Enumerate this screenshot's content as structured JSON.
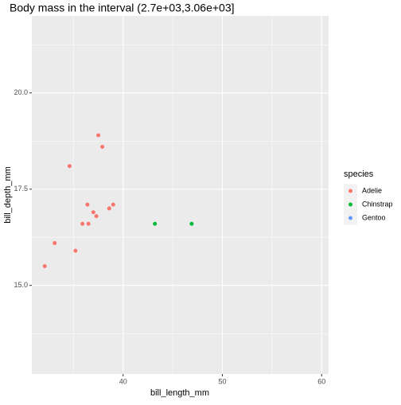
{
  "chart_data": {
    "type": "scatter",
    "title": "Body mass in the interval (2.7e+03,3.06e+03]",
    "x_label": "bill_length_mm",
    "y_label": "bill_depth_mm",
    "legend_title": "species",
    "legend_position": "right",
    "xlim": [
      30.8,
      60.7
    ],
    "ylim": [
      12.7,
      22.0
    ],
    "xticks": [
      40,
      50,
      60
    ],
    "yticks": [
      {
        "value": 15,
        "label": "15.0"
      },
      {
        "value": 17.5,
        "label": "17.5"
      },
      {
        "value": 20,
        "label": "20.0"
      }
    ],
    "grid": true,
    "series": [
      {
        "name": "Adelie",
        "color": "#F8766D",
        "x": [
          32.1,
          33.1,
          34.6,
          35.2,
          35.9,
          36.4,
          36.5,
          37.0,
          37.3,
          37.5,
          37.9,
          38.6,
          39.0
        ],
        "values": [
          15.5,
          16.1,
          18.1,
          15.9,
          16.6,
          17.1,
          16.6,
          16.9,
          16.8,
          18.9,
          18.6,
          17.0,
          17.1
        ]
      },
      {
        "name": "Chinstrap",
        "color": "#00BA38",
        "x": [
          43.2,
          46.9
        ],
        "values": [
          16.6,
          16.6
        ]
      },
      {
        "name": "Gentoo",
        "color": "#619CFF",
        "x": [],
        "values": []
      }
    ]
  }
}
